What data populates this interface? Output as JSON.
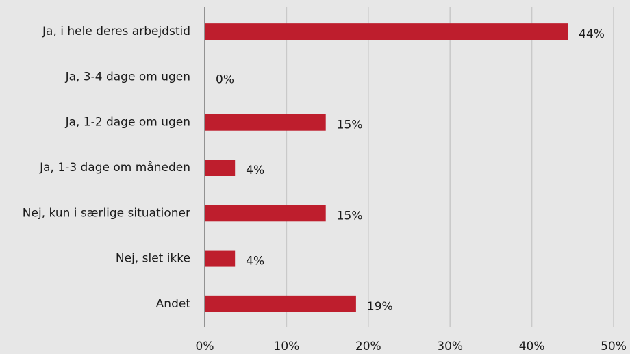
{
  "chart_data": {
    "type": "bar",
    "orientation": "horizontal",
    "categories": [
      "Ja, i hele deres arbejdstid",
      "Ja, 3-4 dage om ugen",
      "Ja, 1-2 dage om ugen",
      "Ja, 1-3 dage om måneden",
      "Nej, kun i særlige situationer",
      "Nej, slet ikke",
      "Andet"
    ],
    "values": [
      44.4,
      0,
      14.8,
      3.7,
      14.8,
      3.7,
      18.5
    ],
    "value_labels": [
      "44%",
      "0%",
      "15%",
      "4%",
      "15%",
      "4%",
      "19%"
    ],
    "color": "#be1e2d",
    "xlim": [
      0,
      50
    ],
    "xticks": [
      {
        "value": 0,
        "label": "0%"
      },
      {
        "value": 10,
        "label": "10%"
      },
      {
        "value": 20,
        "label": "20%"
      },
      {
        "value": 30,
        "label": "30%"
      },
      {
        "value": 40,
        "label": "40%"
      },
      {
        "value": 50,
        "label": "50%"
      }
    ],
    "grid": true
  }
}
